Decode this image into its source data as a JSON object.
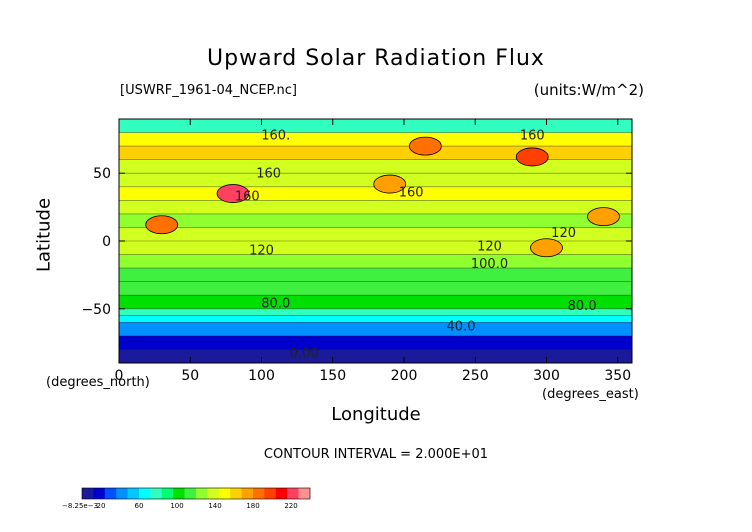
{
  "chart_data": {
    "type": "heatmap",
    "title": "Upward Solar Radiation Flux",
    "subtitle_left": "[USWRF_1961-04_NCEP.nc]",
    "subtitle_right": "(units:W/m^2)",
    "xlabel": "Longitude",
    "ylabel": "Latitude",
    "x_unit_note": "(degrees_east)",
    "y_unit_note": "(degrees_north)",
    "xlim": [
      0,
      360
    ],
    "ylim": [
      -90,
      90
    ],
    "xticks": [
      0,
      50,
      100,
      150,
      200,
      250,
      300,
      350
    ],
    "xtick_labels": [
      "0",
      "50",
      "100",
      "150",
      "200",
      "250",
      "300",
      "350"
    ],
    "yticks": [
      -50,
      0,
      50
    ],
    "ytick_labels": [
      "−50",
      "0",
      "50"
    ],
    "contour_interval_text": "CONTOUR INTERVAL = 2.000E+01",
    "contour_labels": [
      {
        "text": "160.",
        "lon": 110,
        "lat": 75
      },
      {
        "text": "160",
        "lon": 290,
        "lat": 75
      },
      {
        "text": "160",
        "lon": 105,
        "lat": 47
      },
      {
        "text": "160",
        "lon": 205,
        "lat": 33
      },
      {
        "text": "160",
        "lon": 90,
        "lat": 30
      },
      {
        "text": "120",
        "lon": 100,
        "lat": -10
      },
      {
        "text": "120",
        "lon": 260,
        "lat": -7
      },
      {
        "text": "100.0",
        "lon": 260,
        "lat": -20
      },
      {
        "text": "120",
        "lon": 312,
        "lat": 3
      },
      {
        "text": "80.0",
        "lon": 110,
        "lat": -49
      },
      {
        "text": "80.0",
        "lon": 325,
        "lat": -51
      },
      {
        "text": "40.0",
        "lon": 240,
        "lat": -66
      },
      {
        "text": "0.00",
        "lon": 130,
        "lat": -86
      }
    ],
    "rows": [
      {
        "lat": 90,
        "value": 80
      },
      {
        "lat": 80,
        "value": 150
      },
      {
        "lat": 70,
        "value": 160
      },
      {
        "lat": 60,
        "value": 140
      },
      {
        "lat": 50,
        "value": 135
      },
      {
        "lat": 40,
        "value": 145
      },
      {
        "lat": 30,
        "value": 140
      },
      {
        "lat": 20,
        "value": 130
      },
      {
        "lat": 10,
        "value": 140
      },
      {
        "lat": 0,
        "value": 135
      },
      {
        "lat": -10,
        "value": 120
      },
      {
        "lat": -20,
        "value": 110
      },
      {
        "lat": -30,
        "value": 110
      },
      {
        "lat": -40,
        "value": 100
      },
      {
        "lat": -50,
        "value": 80
      },
      {
        "lat": -55,
        "value": 60
      },
      {
        "lat": -60,
        "value": 40
      },
      {
        "lat": -70,
        "value": 20
      },
      {
        "lat": -80,
        "value": 5
      },
      {
        "lat": -90,
        "value": 0
      }
    ],
    "hotspots": [
      {
        "lon": 80,
        "lat": 35,
        "value": 220
      },
      {
        "lon": 290,
        "lat": 62,
        "value": 200
      },
      {
        "lon": 215,
        "lat": 70,
        "value": 190
      },
      {
        "lon": 30,
        "lat": 12,
        "value": 180
      },
      {
        "lon": 340,
        "lat": 18,
        "value": 170
      },
      {
        "lon": 190,
        "lat": 42,
        "value": 170
      },
      {
        "lon": 300,
        "lat": -5,
        "value": 170
      }
    ],
    "colorbar": {
      "min_label": "−8.25e−3",
      "tick_labels": [
        "20",
        "60",
        "100",
        "140",
        "180",
        "220"
      ],
      "tick_values": [
        20,
        60,
        100,
        140,
        180,
        220
      ],
      "range": [
        0,
        240
      ]
    }
  }
}
